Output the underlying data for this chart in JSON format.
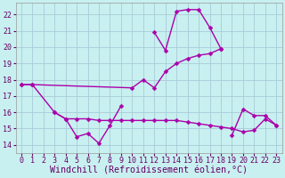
{
  "bg_color": "#c8f0f0",
  "grid_color": "#a8ccd8",
  "line_color": "#aa00aa",
  "marker": "D",
  "markersize": 2.5,
  "linewidth": 1.0,
  "xlabel": "Windchill (Refroidissement éolien,°C)",
  "xlabel_fontsize": 7.2,
  "tick_fontsize": 6.0,
  "ylim": [
    13.5,
    22.7
  ],
  "yticks": [
    14,
    15,
    16,
    17,
    18,
    19,
    20,
    21,
    22
  ],
  "xlim": [
    -0.5,
    23.5
  ],
  "xticks": [
    0,
    1,
    2,
    3,
    4,
    5,
    6,
    7,
    8,
    9,
    10,
    11,
    12,
    13,
    14,
    15,
    16,
    17,
    18,
    19,
    20,
    21,
    22,
    23
  ],
  "series": [
    {
      "x": [
        0,
        1,
        3,
        4,
        5,
        6,
        7,
        8,
        9
      ],
      "y": [
        17.7,
        17.7,
        16.0,
        15.6,
        14.5,
        14.7,
        14.1,
        15.2,
        16.4
      ]
    },
    {
      "x": [
        3,
        4,
        5,
        6,
        7,
        8,
        9,
        10,
        11,
        12,
        13,
        14,
        15,
        16,
        17,
        18,
        19,
        20,
        21,
        22,
        23
      ],
      "y": [
        16.0,
        15.6,
        15.6,
        15.6,
        15.5,
        15.5,
        15.5,
        15.5,
        15.5,
        15.5,
        15.5,
        15.5,
        15.4,
        15.3,
        15.2,
        15.1,
        15.0,
        14.8,
        14.9,
        15.6,
        15.2
      ]
    },
    {
      "x": [
        0,
        1,
        10,
        11,
        12,
        13,
        14,
        15,
        16,
        17,
        18
      ],
      "y": [
        17.7,
        17.7,
        17.5,
        18.0,
        17.5,
        18.5,
        19.0,
        19.3,
        19.5,
        19.6,
        19.9
      ]
    },
    {
      "x": [
        12,
        13,
        14,
        15,
        16,
        17,
        18
      ],
      "y": [
        20.9,
        19.8,
        22.2,
        22.3,
        22.3,
        21.2,
        19.9
      ]
    },
    {
      "x": [
        19,
        20,
        21,
        22,
        23
      ],
      "y": [
        14.6,
        16.2,
        15.8,
        15.8,
        15.2
      ]
    }
  ]
}
